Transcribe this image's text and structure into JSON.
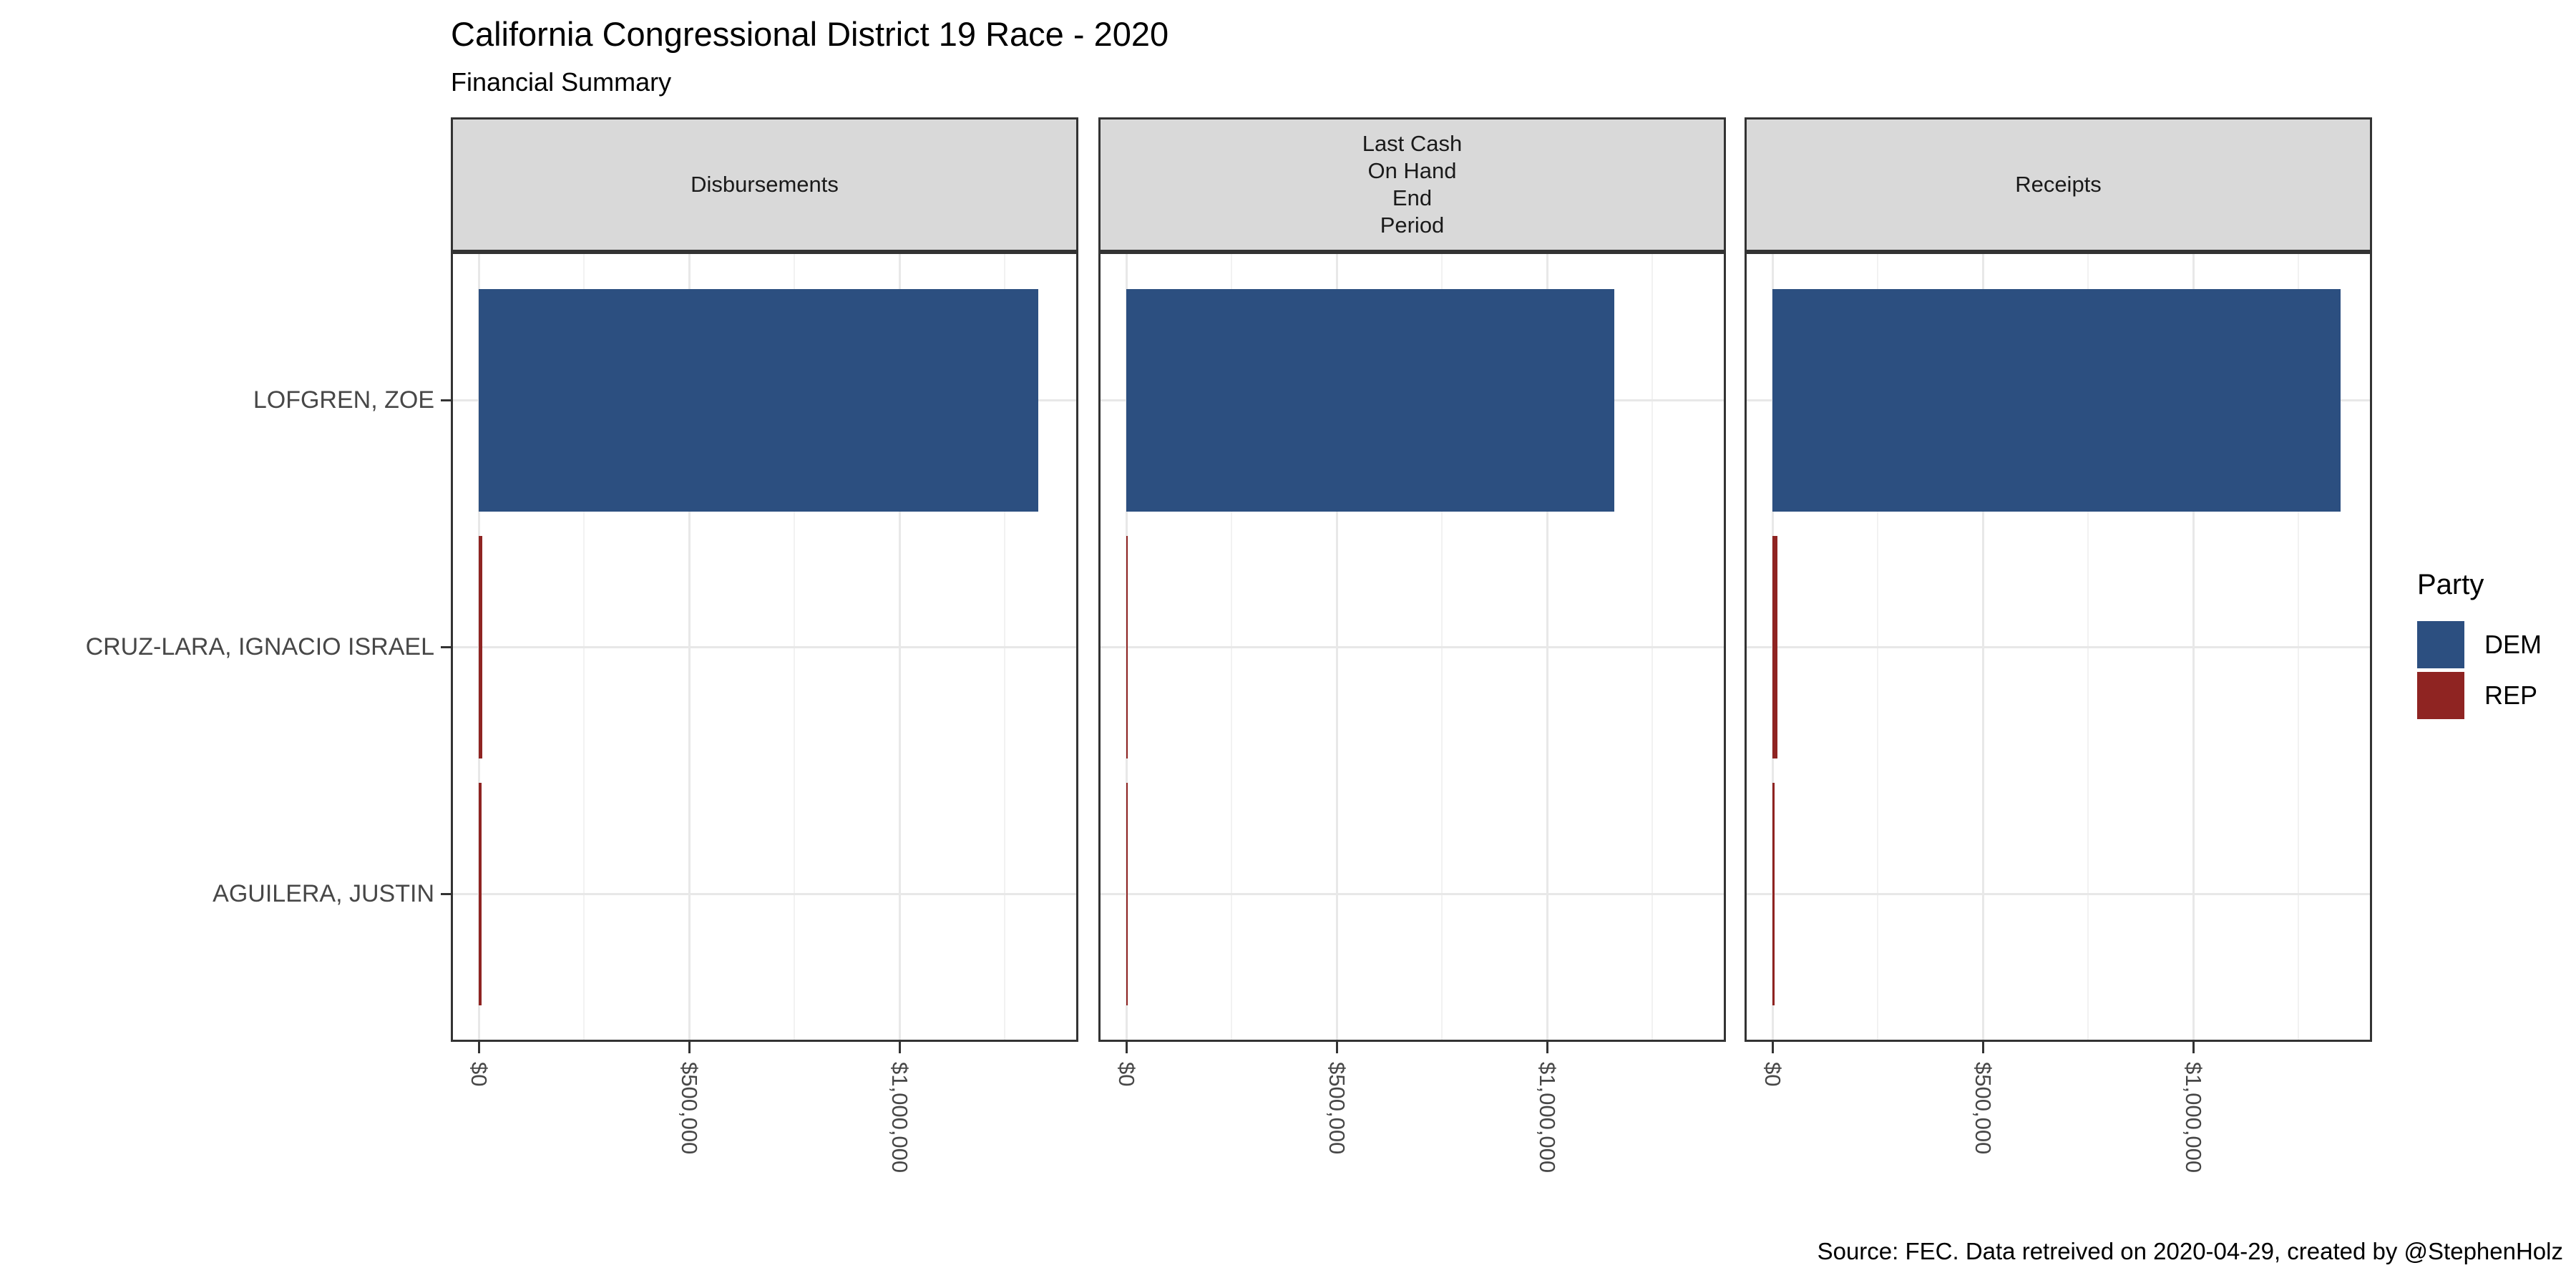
{
  "chart_data": {
    "type": "bar",
    "orientation": "horizontal",
    "title": "California Congressional District 19 Race - 2020",
    "subtitle": "Financial Summary",
    "caption": "Source: FEC. Data retreived on 2020-04-29, created by @StephenHolz",
    "categories": [
      "LOFGREN, ZOE",
      "CRUZ-LARA, IGNACIO ISRAEL",
      "AGUILERA, JUSTIN"
    ],
    "category_party": [
      "DEM",
      "REP",
      "REP"
    ],
    "facets": [
      {
        "label": "Disbursements",
        "values": [
          1330000,
          9000,
          6000
        ]
      },
      {
        "label": "Last Cash\nOn Hand\nEnd\nPeriod",
        "values": [
          1160000,
          3000,
          3000
        ]
      },
      {
        "label": "Receipts",
        "values": [
          1350000,
          12000,
          5000
        ]
      }
    ],
    "x_ticks": [
      {
        "value": 0,
        "label": "$0"
      },
      {
        "value": 500000,
        "label": "$500,000"
      },
      {
        "value": 1000000,
        "label": "$1,000,000"
      }
    ],
    "x_minor_ticks": [
      250000,
      750000,
      1250000
    ],
    "xlim": [
      0,
      1425000
    ],
    "bar_width_fraction": 0.9,
    "grid": true,
    "legend": {
      "title": "Party",
      "position": "right",
      "entries": [
        {
          "label": "DEM",
          "color": "#2C4F80"
        },
        {
          "label": "REP",
          "color": "#8F2422"
        }
      ]
    },
    "colors": {
      "strip_background": "#D9D9D9",
      "panel_border": "#333333",
      "grid_major": "#E8E8E8",
      "grid_minor": "#F2F2F2",
      "axis_text": "#474747",
      "tick_mark": "#333333",
      "text": "#000000"
    }
  }
}
